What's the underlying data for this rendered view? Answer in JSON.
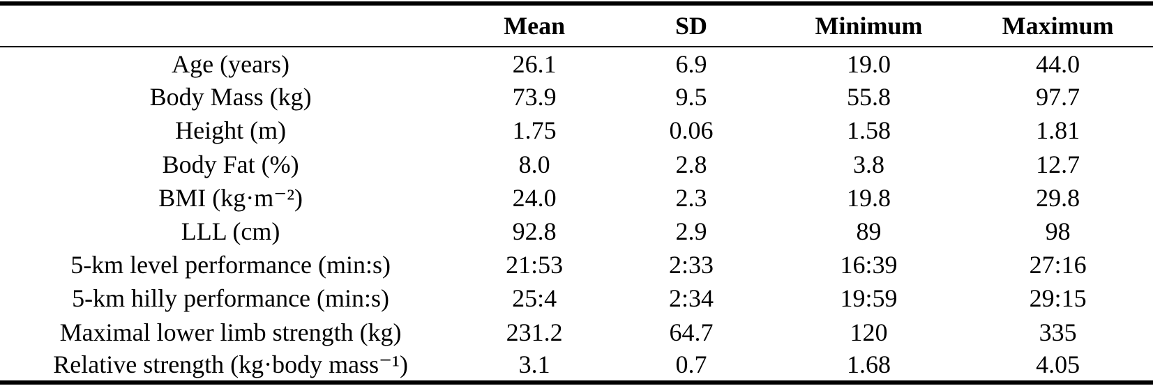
{
  "table": {
    "header": {
      "label_column": "",
      "mean": "Mean",
      "sd": "SD",
      "minimum": "Minimum",
      "maximum": "Maximum"
    },
    "rows": [
      {
        "label": "Age (years)",
        "mean": "26.1",
        "sd": "6.9",
        "minimum": "19.0",
        "maximum": "44.0"
      },
      {
        "label": "Body Mass (kg)",
        "mean": "73.9",
        "sd": "9.5",
        "minimum": "55.8",
        "maximum": "97.7"
      },
      {
        "label": "Height (m)",
        "mean": "1.75",
        "sd": "0.06",
        "minimum": "1.58",
        "maximum": "1.81"
      },
      {
        "label": "Body Fat (%)",
        "mean": "8.0",
        "sd": "2.8",
        "minimum": "3.8",
        "maximum": "12.7"
      },
      {
        "label": "BMI (kg·m⁻²)",
        "mean": "24.0",
        "sd": "2.3",
        "minimum": "19.8",
        "maximum": "29.8"
      },
      {
        "label": "LLL (cm)",
        "mean": "92.8",
        "sd": "2.9",
        "minimum": "89",
        "maximum": "98"
      },
      {
        "label": "5-km level performance (min:s)",
        "mean": "21:53",
        "sd": "2:33",
        "minimum": "16:39",
        "maximum": "27:16"
      },
      {
        "label": "5-km hilly performance (min:s)",
        "mean": "25:4",
        "sd": "2:34",
        "minimum": "19:59",
        "maximum": "29:15"
      },
      {
        "label": "Maximal lower limb strength (kg)",
        "mean": "231.2",
        "sd": "64.7",
        "minimum": "120",
        "maximum": "335"
      },
      {
        "label": "Relative strength (kg·body mass⁻¹)",
        "mean": "3.1",
        "sd": "0.7",
        "minimum": "1.68",
        "maximum": "4.05"
      }
    ]
  }
}
